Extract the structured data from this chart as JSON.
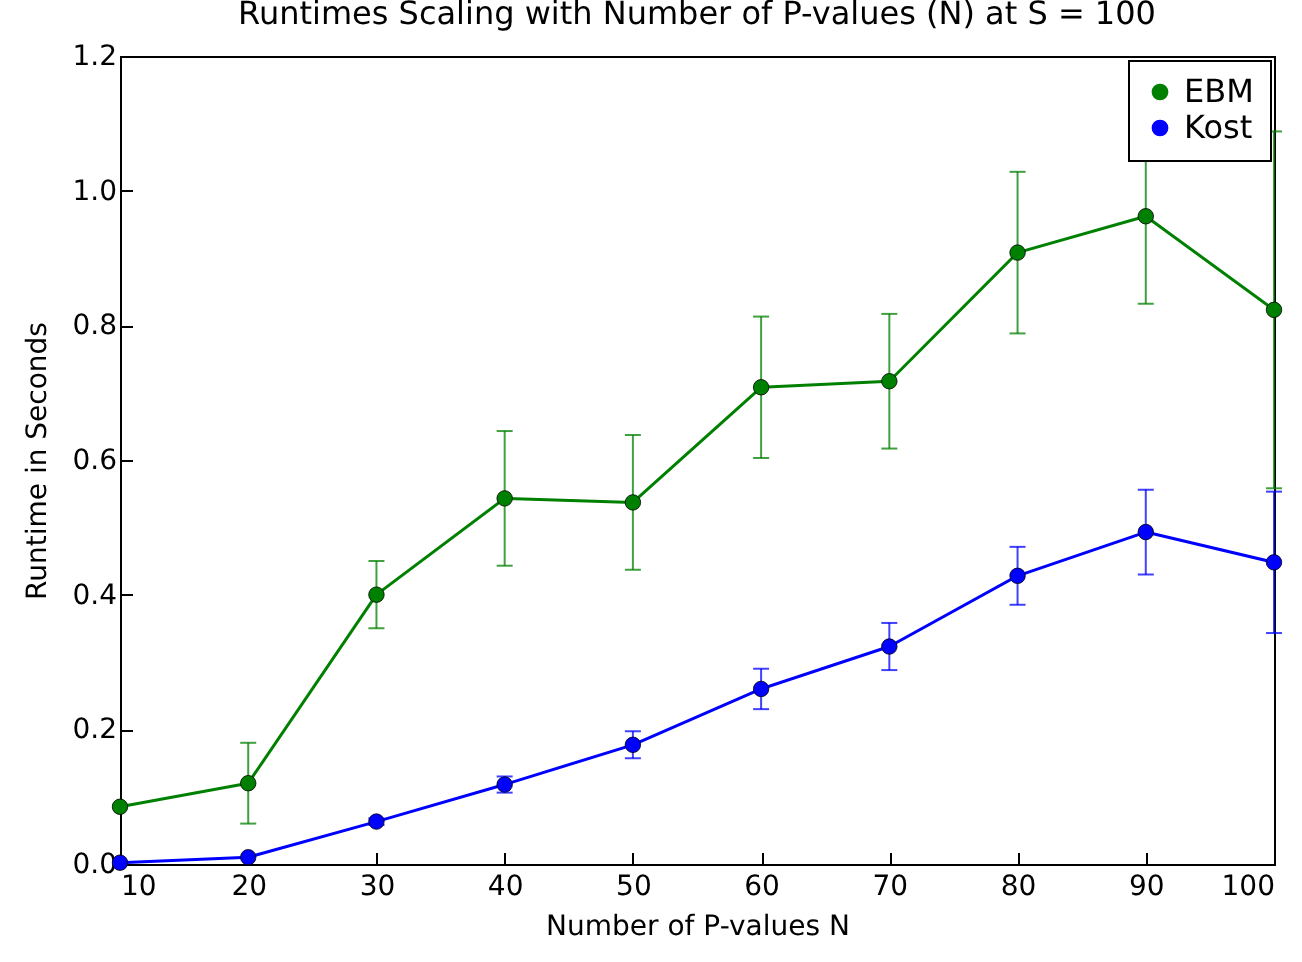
{
  "chart_data": {
    "type": "line",
    "title": "Runtimes Scaling with Number of P-values (N) at S = 100",
    "xlabel": "Number of P-values N",
    "ylabel": "Runtime in Seconds",
    "x": [
      10,
      20,
      30,
      40,
      50,
      60,
      70,
      80,
      90,
      100
    ],
    "series": [
      {
        "name": "EBM",
        "color": "#008000",
        "values": [
          0.085,
          0.12,
          0.4,
          0.543,
          0.537,
          0.708,
          0.717,
          0.908,
          0.962,
          0.823
        ],
        "errors": [
          null,
          0.06,
          0.05,
          0.1,
          0.1,
          0.105,
          0.1,
          0.12,
          0.13,
          0.265
        ]
      },
      {
        "name": "Kost",
        "color": "#0000ff",
        "values": [
          0.002,
          0.01,
          0.063,
          0.118,
          0.177,
          0.26,
          0.323,
          0.428,
          0.493,
          0.448
        ],
        "errors": [
          null,
          null,
          0.005,
          0.012,
          0.02,
          0.03,
          0.035,
          0.043,
          0.063,
          0.105
        ]
      }
    ],
    "xlim": [
      10,
      100
    ],
    "xticks": [
      10,
      20,
      30,
      40,
      50,
      60,
      70,
      80,
      90,
      100
    ],
    "ylim": [
      0,
      1.2
    ],
    "yticks": [
      {
        "value": 0,
        "label": "0.0"
      },
      {
        "value": 0.2,
        "label": "0.2"
      },
      {
        "value": 0.4,
        "label": "0.4"
      },
      {
        "value": 0.6,
        "label": "0.6"
      },
      {
        "value": 0.8,
        "label": "0.8"
      },
      {
        "value": 1,
        "label": "1.0"
      },
      {
        "value": 1.2,
        "label": "1.2"
      }
    ],
    "grid": false,
    "legend": "top right",
    "marker": "circle",
    "line_style": "solid"
  }
}
